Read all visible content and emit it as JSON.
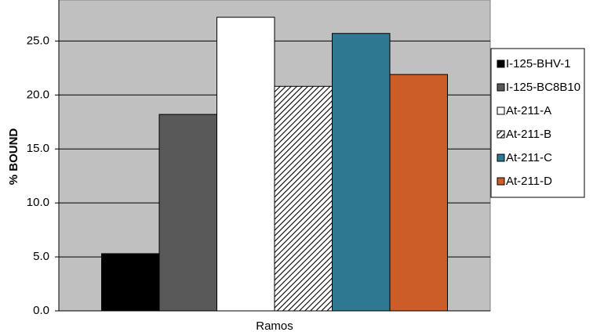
{
  "chart_data": {
    "type": "bar",
    "y_label": "% BOUND",
    "categories": [
      "Ramos"
    ],
    "series": [
      {
        "name": "I-125-BHV-1",
        "color": "#000000",
        "values": [
          5.3
        ]
      },
      {
        "name": "I-125-BC8B10",
        "color": "#595959",
        "values": [
          18.2
        ]
      },
      {
        "name": "At-211-A",
        "color": "#ffffff",
        "values": [
          27.2
        ]
      },
      {
        "name": "At-211-B",
        "color": "#ffffff",
        "hatch": true,
        "values": [
          20.8
        ]
      },
      {
        "name": "At-211-C",
        "color": "#2e7891",
        "values": [
          25.7
        ]
      },
      {
        "name": "At-211-D",
        "color": "#cc5c28",
        "values": [
          21.9
        ]
      }
    ],
    "ylim": [
      0,
      28.8
    ],
    "yticks": [
      {
        "value": 0,
        "label": "0.0"
      },
      {
        "value": 5,
        "label": "5.0"
      },
      {
        "value": 10,
        "label": "10.0"
      },
      {
        "value": 15,
        "label": "15.0"
      },
      {
        "value": 20,
        "label": "20.0"
      },
      {
        "value": 25,
        "label": "25.0"
      }
    ],
    "grid": true,
    "plot_background": "#c0c0c0",
    "legend": "right"
  }
}
